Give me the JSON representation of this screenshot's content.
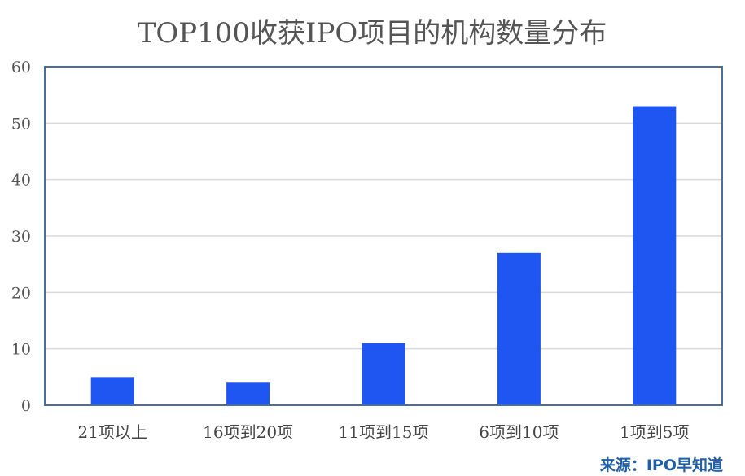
{
  "chart_data": {
    "type": "bar",
    "title": "TOP100收获IPO项目的机构数量分布",
    "categories": [
      "21项以上",
      "16项到20项",
      "11项到15项",
      "6项到10项",
      "1项到5项"
    ],
    "values": [
      5,
      4,
      11,
      27,
      53
    ],
    "ylim": [
      0,
      60
    ],
    "yticks": [
      0,
      10,
      20,
      30,
      40,
      50,
      60
    ],
    "grid": true,
    "xlabel": "",
    "ylabel": "",
    "source": "来源：IPO早知道",
    "colors": {
      "bar": "#1f55f0",
      "grid": "#d9d9d9",
      "frame": "#4a6d9c",
      "source": "#1f5fa8"
    }
  }
}
